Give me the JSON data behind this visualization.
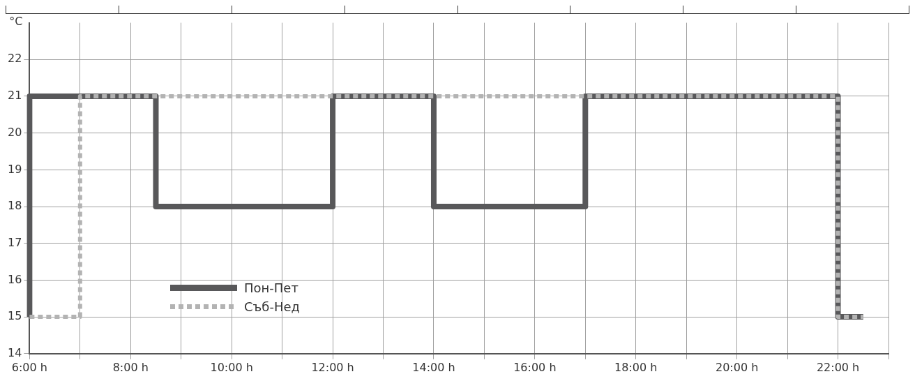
{
  "chart_data": {
    "type": "step",
    "ylabel": "°C",
    "ylim": [
      14,
      23
    ],
    "categories": [
      "6:00 h",
      null,
      null,
      null,
      "8:00 h",
      null,
      null,
      null,
      "10:00 h",
      null,
      null,
      null,
      "12:00 h",
      null,
      null,
      null,
      "14:00 h",
      null,
      null,
      null,
      "16:00 h",
      null,
      null,
      null,
      "18:00 h",
      null,
      null,
      null,
      "20:00 h",
      null,
      null,
      null,
      "22:00 h",
      null,
      null
    ],
    "yticks": [
      14,
      15,
      16,
      17,
      18,
      19,
      20,
      21,
      22
    ],
    "grid": true,
    "legend": "bottom left",
    "series": [
      {
        "name": "Пон-Пет",
        "color": "#58585a",
        "line_style": "solid",
        "values": [
          15,
          21,
          21,
          21,
          21,
          21,
          18,
          18,
          18,
          18,
          18,
          18,
          18,
          21,
          21,
          21,
          21,
          18,
          18,
          18,
          18,
          18,
          18,
          21,
          21,
          21,
          21,
          21,
          21,
          21,
          21,
          21,
          21,
          15,
          null
        ]
      },
      {
        "name": "Съб-Нед",
        "color": "#b3b3b3",
        "line_style": "dotted",
        "values": [
          15,
          15,
          15,
          21,
          21,
          21,
          21,
          21,
          21,
          21,
          21,
          21,
          21,
          21,
          21,
          21,
          21,
          21,
          21,
          21,
          21,
          21,
          21,
          21,
          21,
          21,
          21,
          21,
          21,
          21,
          21,
          21,
          21,
          15,
          null
        ]
      }
    ]
  }
}
